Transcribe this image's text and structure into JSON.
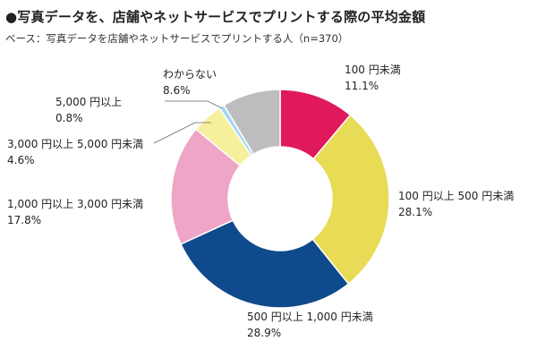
{
  "header": {
    "title": "●写真データを、店舗やネットサービスでプリントする際の平均金額",
    "subtitle": "ベース：写真データを店舗やネットサービスでプリントする人（n=370）"
  },
  "chart_data": {
    "type": "pie",
    "variant": "donut",
    "title": "●写真データを、店舗やネットサービスでプリントする際の平均金額",
    "subtitle": "ベース：写真データを店舗やネットサービスでプリントする人（n=370）",
    "unit": "%",
    "start": "12 o'clock",
    "direction": "clockwise",
    "slices": [
      {
        "label": "100 円未満",
        "value": 11.1,
        "color": "#e0185c"
      },
      {
        "label": "100 円以上 500 円未満",
        "value": 28.1,
        "color": "#e8db55"
      },
      {
        "label": "500 円以上 1,000 円未満",
        "value": 28.9,
        "color": "#0f4a8c"
      },
      {
        "label": "1,000 円以上 3,000 円未満",
        "value": 17.8,
        "color": "#eea5c6"
      },
      {
        "label": "3,000 円以上 5,000 円未満",
        "value": 4.6,
        "color": "#f6ef9c"
      },
      {
        "label": "5,000 円以上",
        "value": 0.8,
        "color": "#a8d8ee"
      },
      {
        "label": "わからない",
        "value": 8.6,
        "color": "#bdbdbd"
      }
    ]
  }
}
